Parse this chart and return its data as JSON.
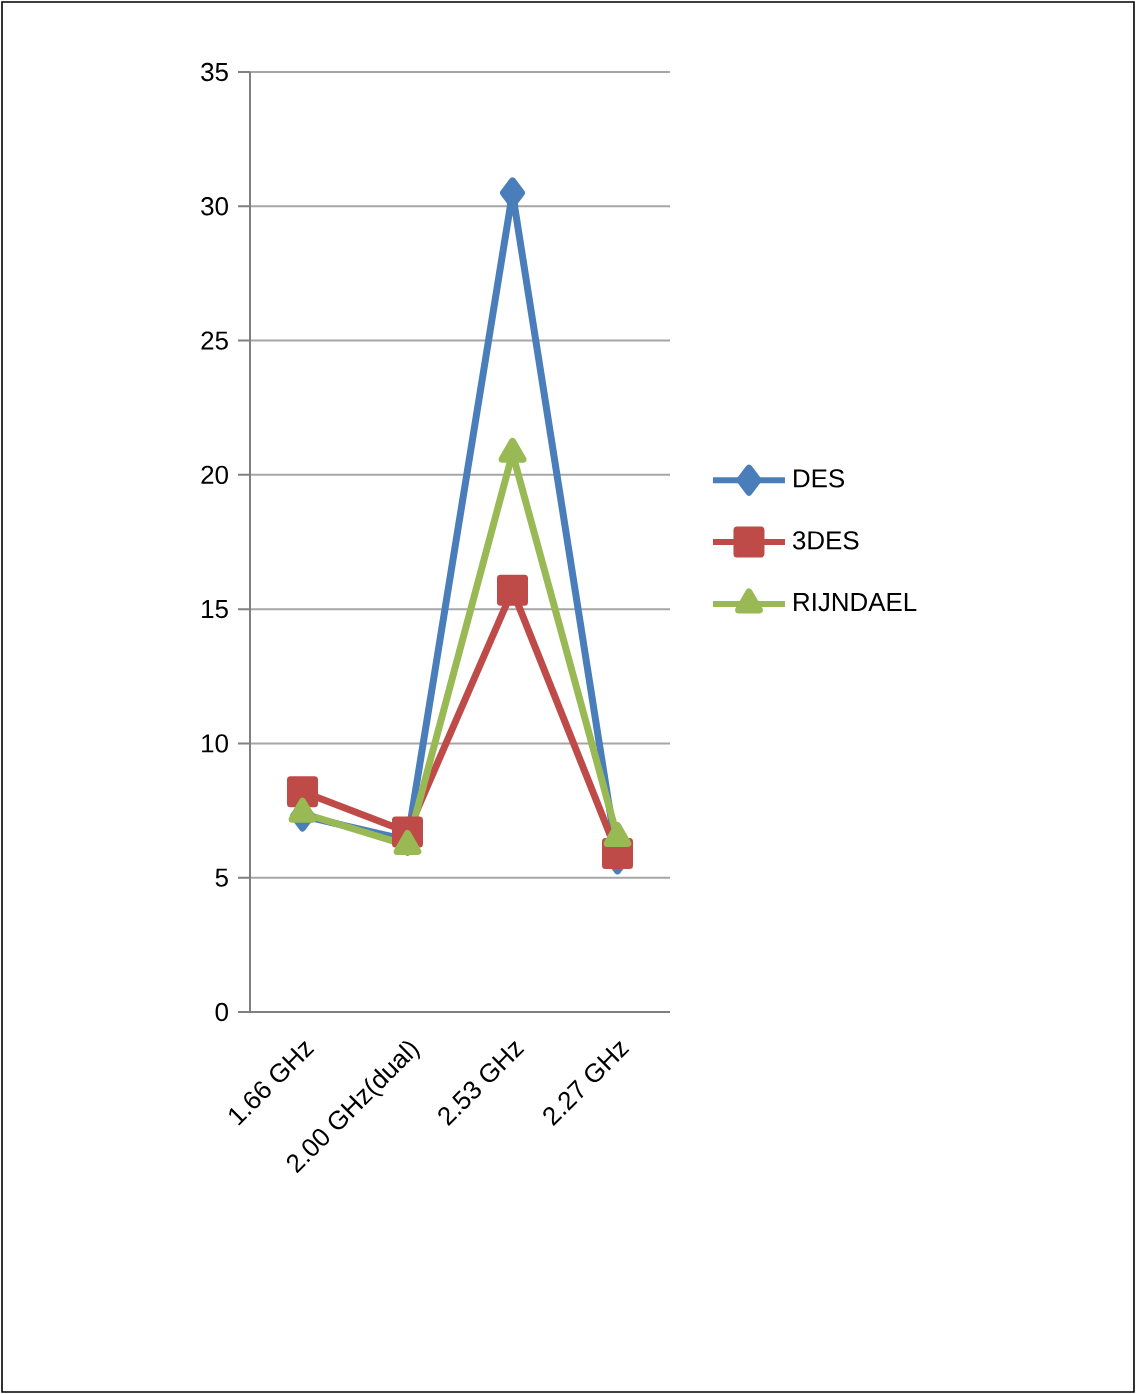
{
  "chart_data": {
    "type": "line",
    "categories": [
      "1.66 GHz",
      "2.00 GHz(dual)",
      "2.53 GHz",
      "2.27 GHz"
    ],
    "series": [
      {
        "name": "DES",
        "color": "#4a7ebb",
        "marker": "diamond",
        "values": [
          7.3,
          6.4,
          30.5,
          5.7
        ]
      },
      {
        "name": "3DES",
        "color": "#be4b48",
        "marker": "square",
        "values": [
          8.2,
          6.7,
          15.7,
          5.9
        ]
      },
      {
        "name": "RIJNDAEL",
        "color": "#98b954",
        "marker": "triangle",
        "values": [
          7.4,
          6.2,
          20.8,
          6.5
        ]
      }
    ],
    "ylim": [
      0,
      35
    ],
    "yticks": [
      0,
      5,
      10,
      15,
      20,
      25,
      30,
      35
    ],
    "grid": "y",
    "legend": "right"
  }
}
